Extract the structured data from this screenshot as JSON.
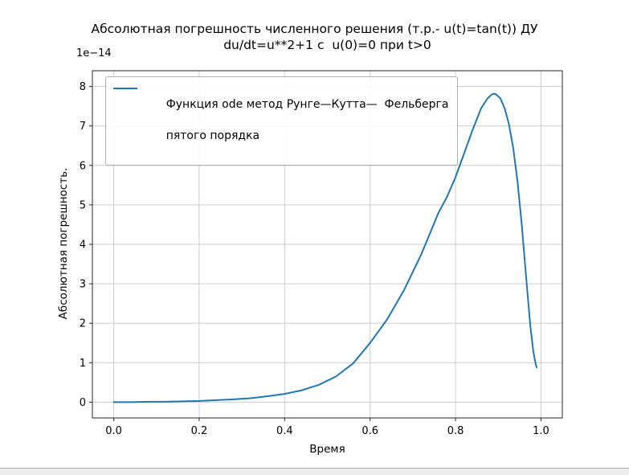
{
  "figure": {
    "title_line1": "Абсолютная погрешность численного решения (т.р.- u(t)=tan(t)) ДУ",
    "title_line2": "du/dt=u**2+1 с  u(0)=0 при t>0",
    "offset_text": "1e−14",
    "xlabel": "Время",
    "ylabel": "Абсолютная погрешность.",
    "legend_line1": "Функция ode метод Рунге—Кутта—  Фельберга",
    "legend_line2": "пятого порядка"
  },
  "chart_data": {
    "type": "line",
    "title": "Абсолютная погрешность численного решения (т.р.- u(t)=tan(t)) ДУ du/dt=u**2+1 с u(0)=0 при t>0",
    "xlabel": "Время",
    "ylabel": "Абсолютная погрешность.",
    "y_scale_offset": "1e-14",
    "xlim": [
      -0.05,
      1.05
    ],
    "ylim": [
      -0.4,
      8.4
    ],
    "xticks": [
      0.0,
      0.2,
      0.4,
      0.6,
      0.8,
      1.0
    ],
    "yticks": [
      0,
      1,
      2,
      3,
      4,
      5,
      6,
      7,
      8
    ],
    "grid": true,
    "grid_color": "#cccccc",
    "axis_color": "#262626",
    "legend_position": "upper left",
    "series": [
      {
        "name": "Функция ode метод Рунге—Кутта—  Фельберга пятого порядка",
        "color": "#1f77b4",
        "x": [
          0.0,
          0.04,
          0.08,
          0.12,
          0.16,
          0.2,
          0.24,
          0.28,
          0.32,
          0.36,
          0.4,
          0.44,
          0.48,
          0.52,
          0.56,
          0.6,
          0.64,
          0.68,
          0.72,
          0.76,
          0.78,
          0.8,
          0.82,
          0.84,
          0.86,
          0.875,
          0.885,
          0.89,
          0.895,
          0.905,
          0.915,
          0.925,
          0.935,
          0.945,
          0.955,
          0.965,
          0.975,
          0.982,
          0.988,
          0.99
        ],
        "y": [
          0.0,
          0.0,
          0.01,
          0.01,
          0.02,
          0.03,
          0.05,
          0.07,
          0.1,
          0.15,
          0.21,
          0.3,
          0.44,
          0.65,
          0.98,
          1.5,
          2.1,
          2.85,
          3.75,
          4.8,
          5.2,
          5.7,
          6.3,
          6.9,
          7.45,
          7.7,
          7.8,
          7.82,
          7.8,
          7.7,
          7.45,
          7.05,
          6.45,
          5.6,
          4.5,
          3.2,
          1.95,
          1.3,
          0.95,
          0.88
        ]
      }
    ]
  }
}
